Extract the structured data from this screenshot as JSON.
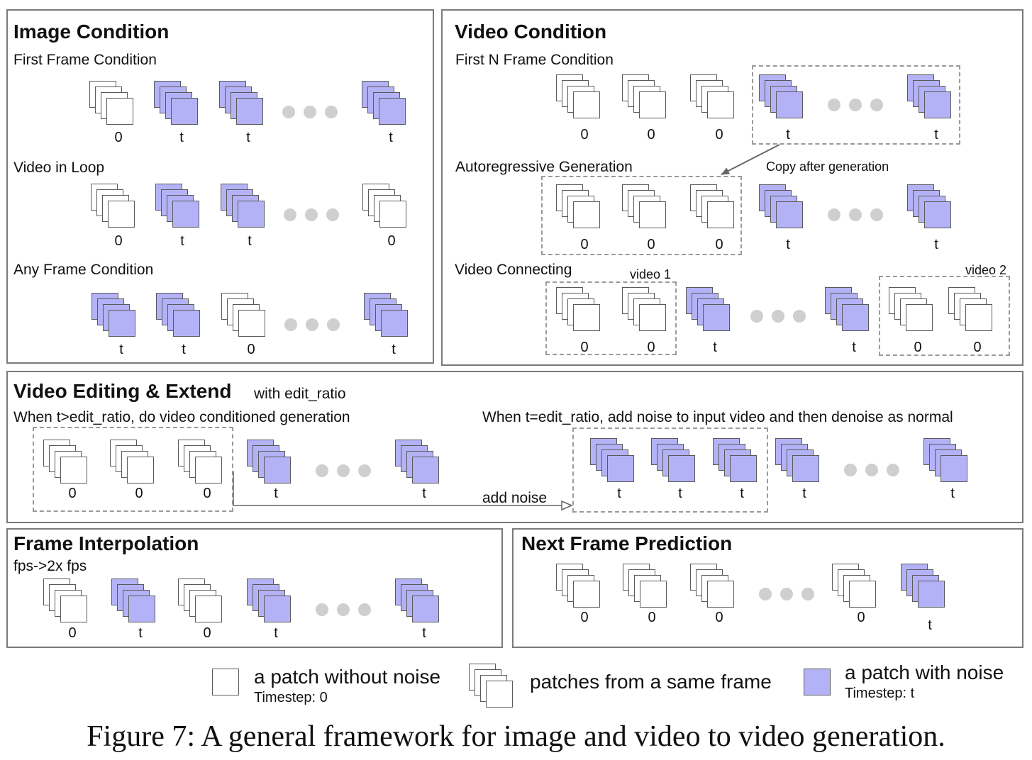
{
  "image_condition": {
    "title": "Image Condition",
    "first_frame": {
      "label": "First Frame Condition",
      "frames": [
        "0",
        "t",
        "t",
        "t"
      ]
    },
    "video_loop": {
      "label": "Video in Loop",
      "frames": [
        "0",
        "t",
        "t",
        "0"
      ]
    },
    "any_frame": {
      "label": "Any Frame Condition",
      "frames": [
        "t",
        "t",
        "0",
        "t"
      ]
    }
  },
  "video_condition": {
    "title": "Video Condition",
    "first_n": {
      "label": "First N Frame Condition",
      "frames": [
        "0",
        "0",
        "0",
        "t",
        "t"
      ]
    },
    "copy_note": "Copy after generation",
    "autoregressive": {
      "label": "Autoregressive Generation",
      "frames": [
        "0",
        "0",
        "0",
        "t",
        "t"
      ]
    },
    "connecting": {
      "label": "Video Connecting",
      "video1": "video 1",
      "video2": "video 2",
      "frames": [
        "0",
        "0",
        "t",
        "t",
        "0",
        "0"
      ]
    }
  },
  "video_editing": {
    "title": "Video Editing & Extend",
    "subtitle": "with edit_ratio",
    "left_desc": "When t>edit_ratio, do video conditioned generation",
    "right_desc": "When t=edit_ratio, add noise to input video and then denoise as normal",
    "arrow_label": "add noise",
    "left_frames": [
      "0",
      "0",
      "0",
      "t",
      "t"
    ],
    "right_frames": [
      "t",
      "t",
      "t",
      "t",
      "t"
    ]
  },
  "frame_interpolation": {
    "title": "Frame Interpolation",
    "subtitle": "fps->2x fps",
    "frames": [
      "0",
      "t",
      "0",
      "t",
      "t"
    ]
  },
  "next_frame": {
    "title": "Next Frame Prediction",
    "frames": [
      "0",
      "0",
      "0",
      "0",
      "t"
    ]
  },
  "legend": {
    "clean_label": "a patch without noise",
    "clean_timestep": "Timestep: 0",
    "stack_label": "patches from a same frame",
    "noise_label": "a patch with noise",
    "noise_timestep": "Timestep: t"
  },
  "colors": {
    "noise_fill": "#b4b2f6",
    "border": "#7a7a7a",
    "dots": "#cfcfcf"
  },
  "caption": "Figure 7: A general framework for image and video to video generation."
}
